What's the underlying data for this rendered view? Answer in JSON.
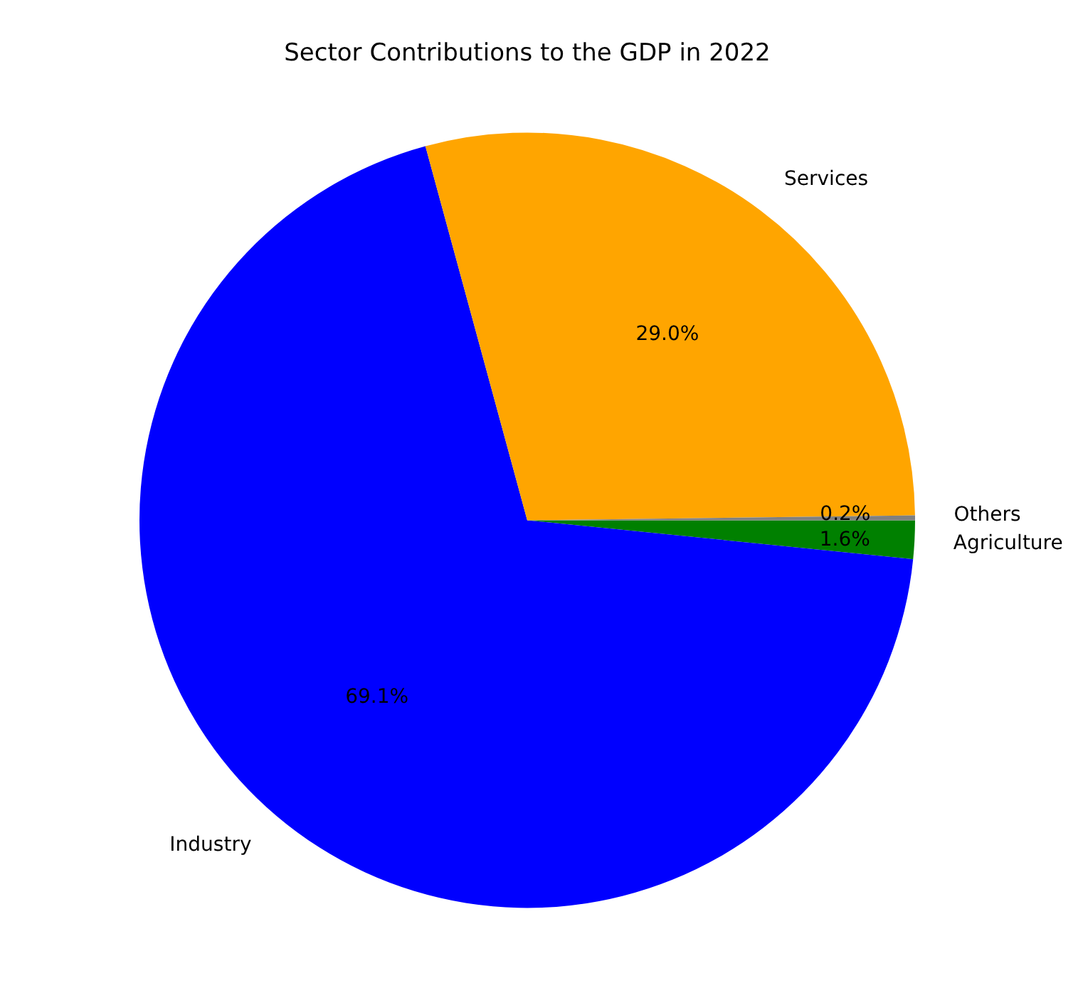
{
  "chart_data": {
    "type": "pie",
    "title": "Sector Contributions to the GDP in 2022",
    "categories": [
      "Agriculture",
      "Industry",
      "Services",
      "Others"
    ],
    "values": [
      1.6,
      69.1,
      29.0,
      0.2
    ],
    "colors": [
      "#008000",
      "#0000ff",
      "#ffa500",
      "#808080"
    ],
    "value_labels": [
      "1.6%",
      "69.1%",
      "29.0%",
      "0.2%"
    ],
    "legend": false
  }
}
